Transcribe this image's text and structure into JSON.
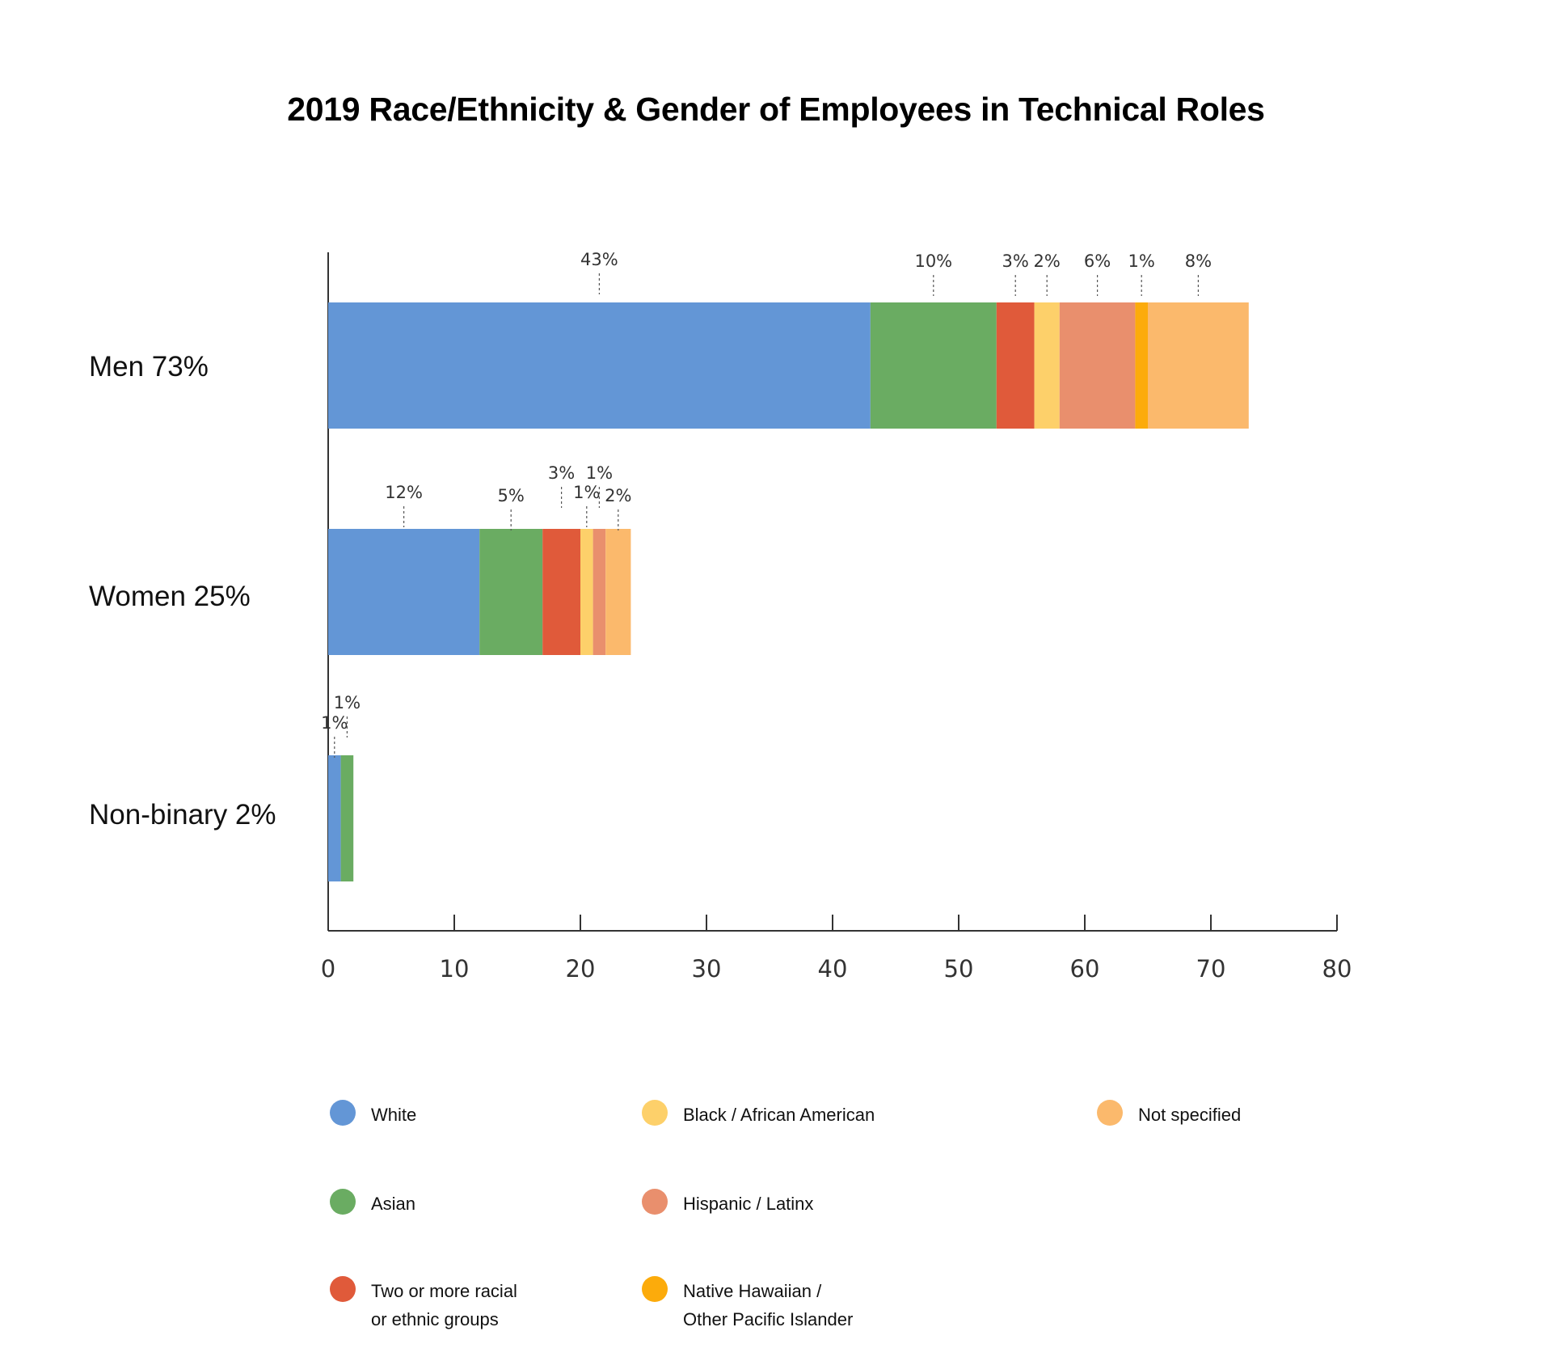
{
  "title": "2019 Race/Ethnicity & Gender of Employees in Technical Roles",
  "colors": {
    "White": "#6396d6",
    "Asian": "#6aac62",
    "Two or more": "#e05a3a",
    "Black": "#fdd06a",
    "Hispanic": "#e98f6d",
    "Native Hawaiian": "#fcab0b",
    "Not specified": "#fbb96c"
  },
  "chart_data": {
    "type": "bar",
    "orientation": "horizontal",
    "stacked": true,
    "title": "2019 Race/Ethnicity & Gender of Employees in Technical Roles",
    "xlabel": "",
    "ylabel": "",
    "xlim": [
      0,
      80
    ],
    "xticks": [
      0,
      10,
      20,
      30,
      40,
      50,
      60,
      70,
      80
    ],
    "categories": [
      "Men 73%",
      "Women 25%",
      "Non-binary 2%"
    ],
    "series": [
      {
        "name": "White",
        "values": [
          43,
          12,
          1
        ]
      },
      {
        "name": "Asian",
        "values": [
          10,
          5,
          1
        ]
      },
      {
        "name": "Two or more racial\nor ethnic groups",
        "values": [
          3,
          3,
          0
        ]
      },
      {
        "name": "Black / African American",
        "values": [
          2,
          1,
          0
        ]
      },
      {
        "name": "Hispanic /  Latinx",
        "values": [
          6,
          1,
          0
        ]
      },
      {
        "name": "Native Hawaiian /\nOther Pacific Islander",
        "values": [
          1,
          0,
          0
        ]
      },
      {
        "name": "Not specified",
        "values": [
          8,
          2,
          0
        ]
      }
    ],
    "data_labels": [
      [
        "43%",
        "10%",
        "3%",
        "2%",
        "6%",
        "1%",
        "8%"
      ],
      [
        "12%",
        "5%",
        "3%",
        "1%",
        "1%",
        "",
        "2%"
      ],
      [
        "1%",
        "1%",
        "",
        "",
        "",
        "",
        ""
      ]
    ],
    "legend": {
      "placement": "bottom",
      "columns": [
        [
          "White",
          "Asian",
          "Two or more racial\nor ethnic groups"
        ],
        [
          "Black / African American",
          "Hispanic /  Latinx",
          "Native Hawaiian /\nOther Pacific Islander"
        ],
        [
          "Not specified"
        ]
      ]
    },
    "grid": false
  }
}
